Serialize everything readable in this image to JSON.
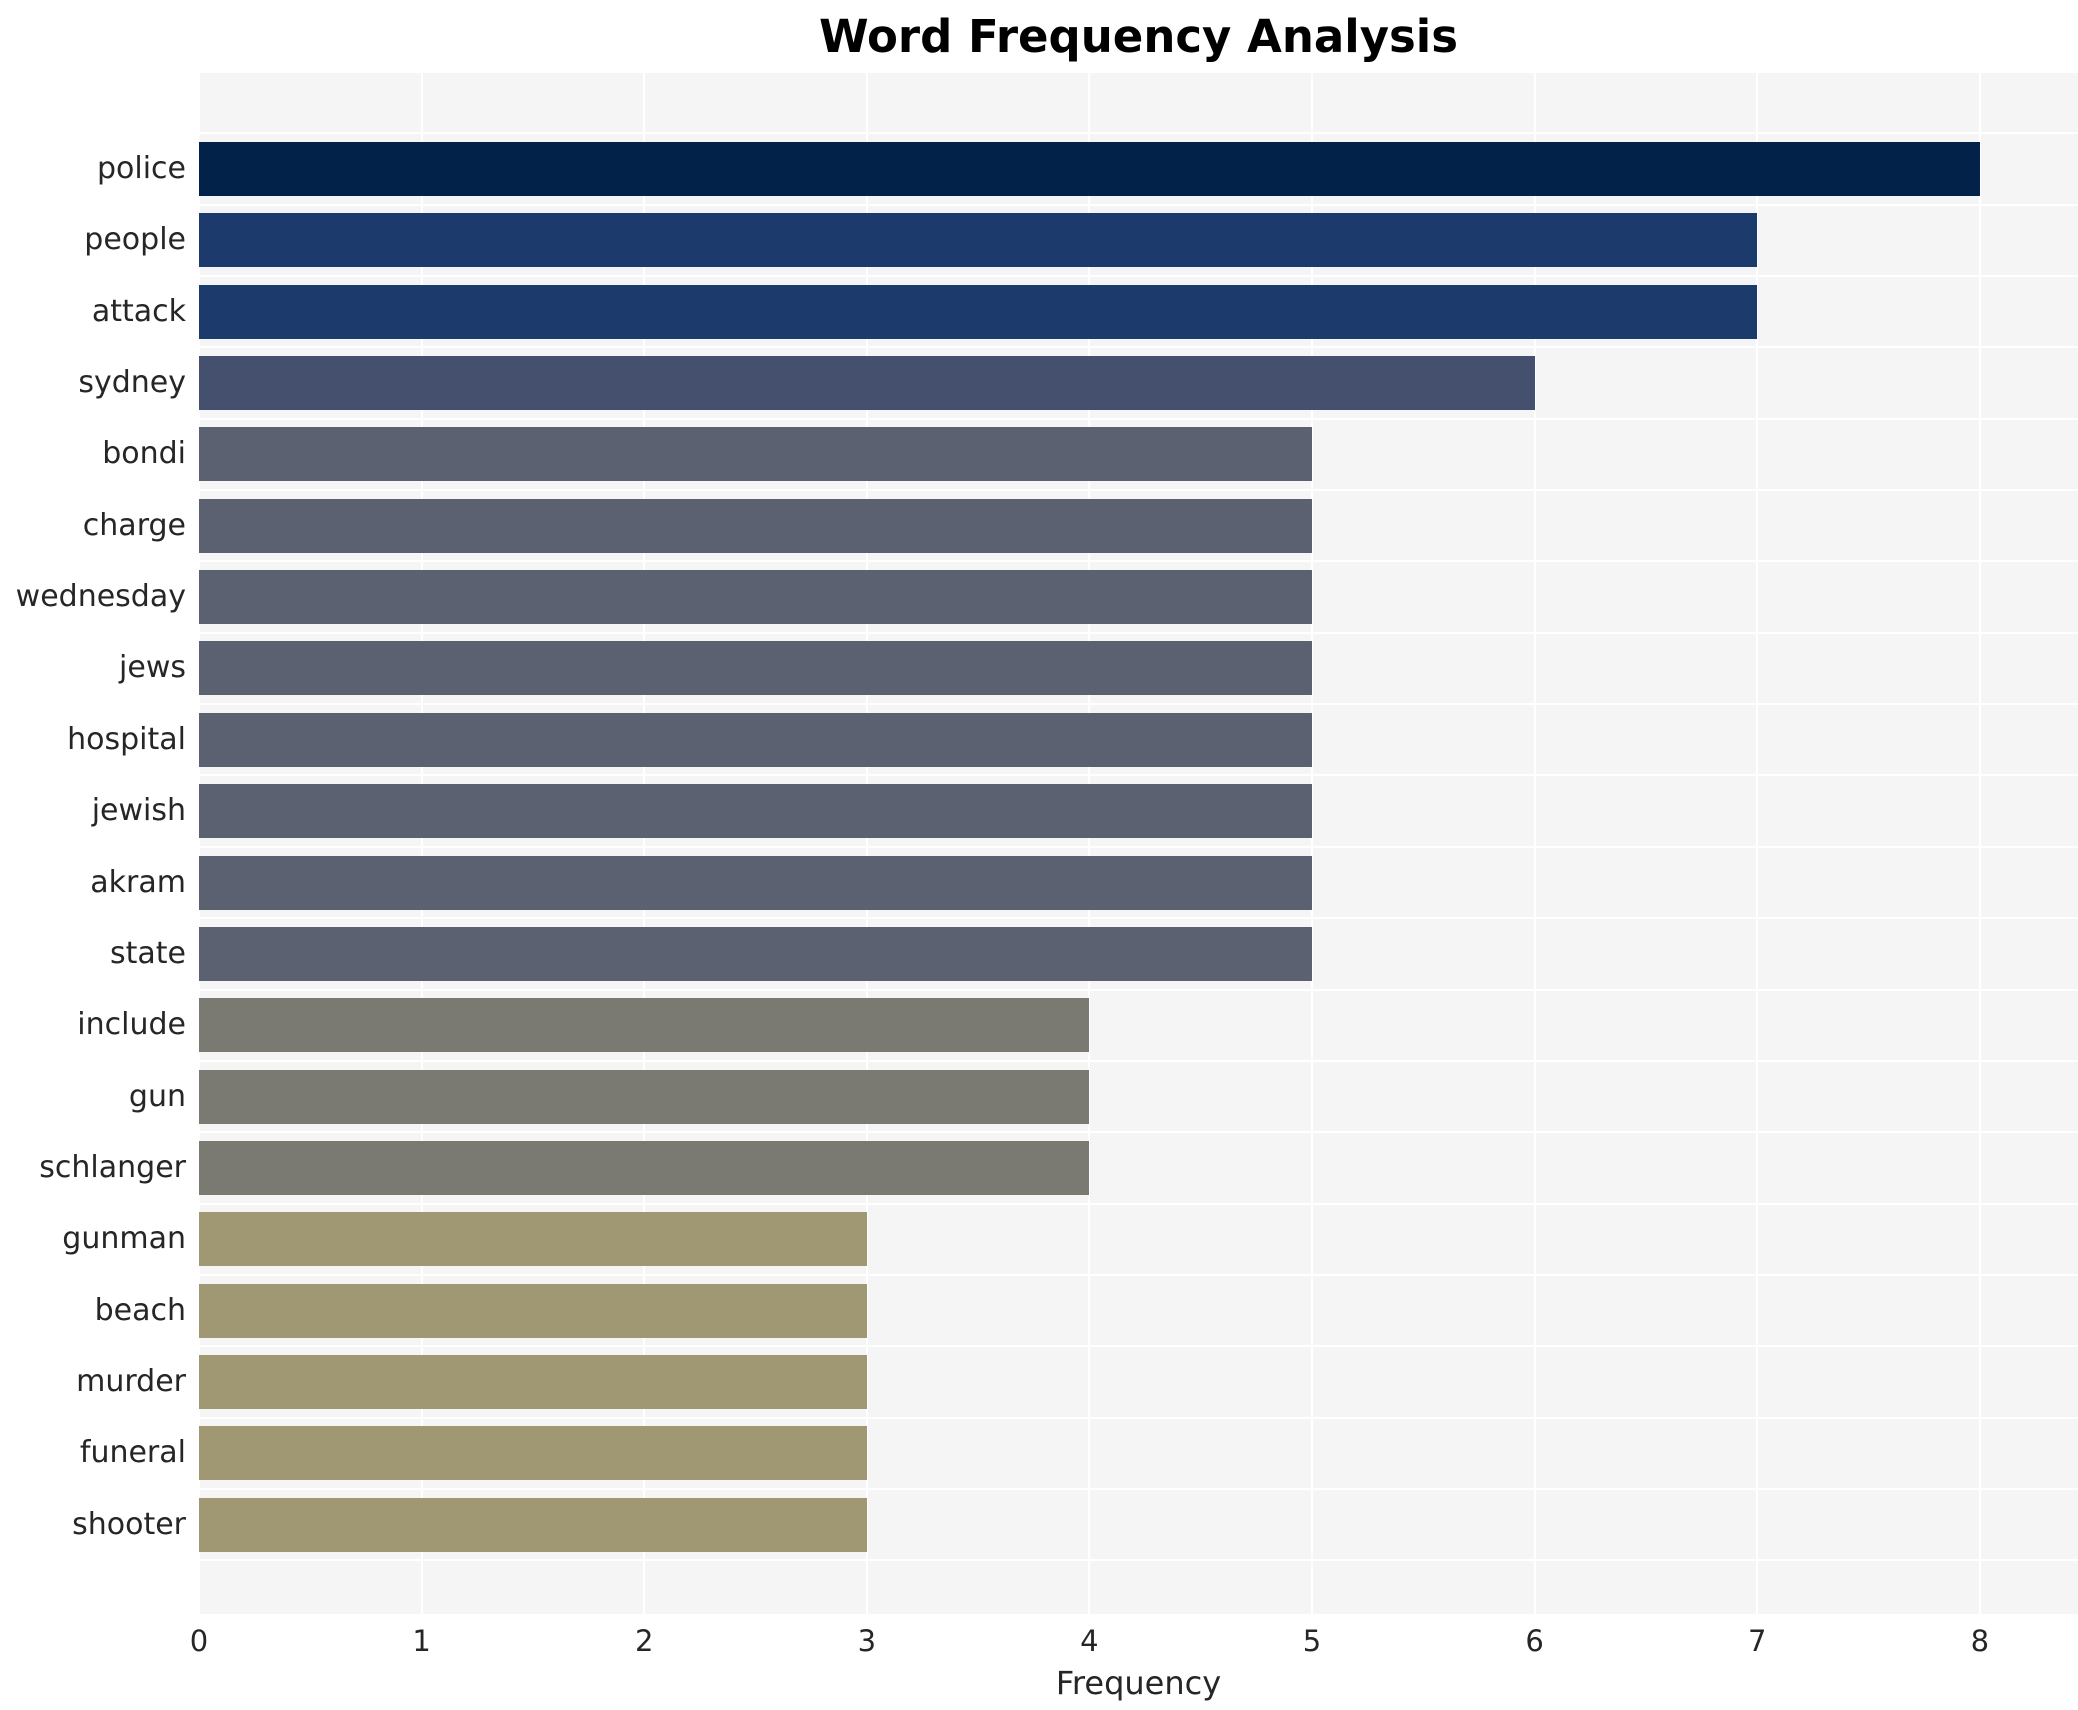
{
  "chart_data": {
    "type": "bar",
    "orientation": "horizontal",
    "title": "Word Frequency Analysis",
    "xlabel": "Frequency",
    "ylabel": "",
    "categories": [
      "police",
      "people",
      "attack",
      "sydney",
      "bondi",
      "charge",
      "wednesday",
      "jews",
      "hospital",
      "jewish",
      "akram",
      "state",
      "include",
      "gun",
      "schlanger",
      "gunman",
      "beach",
      "murder",
      "funeral",
      "shooter"
    ],
    "values": [
      8,
      7,
      7,
      6,
      5,
      5,
      5,
      5,
      5,
      5,
      5,
      5,
      4,
      4,
      4,
      3,
      3,
      3,
      3,
      3
    ],
    "bar_colors": [
      "#032249",
      "#1d3a6d",
      "#1d3a6d",
      "#45506e",
      "#5b6170",
      "#5b6170",
      "#5b6170",
      "#5b6170",
      "#5b6170",
      "#5b6170",
      "#5b6170",
      "#5b6170",
      "#7b7a72",
      "#7b7a72",
      "#7b7a72",
      "#a09873",
      "#a09873",
      "#a09873",
      "#a09873",
      "#a09873"
    ],
    "value_color_map": {
      "8": "#032249",
      "7": "#1d3a6d",
      "6": "#45506e",
      "5": "#5b6170",
      "4": "#7b7a72",
      "3": "#a09873"
    },
    "x_ticks": [
      "0",
      "1",
      "2",
      "3",
      "4",
      "5",
      "6",
      "7",
      "8"
    ],
    "xlim": [
      0,
      8.44
    ],
    "grid": true,
    "legend": false,
    "plot_background": "#f5f5f6",
    "grid_color": "#ffffff",
    "tick_text_color": "#262626",
    "title_color": "#000000"
  }
}
